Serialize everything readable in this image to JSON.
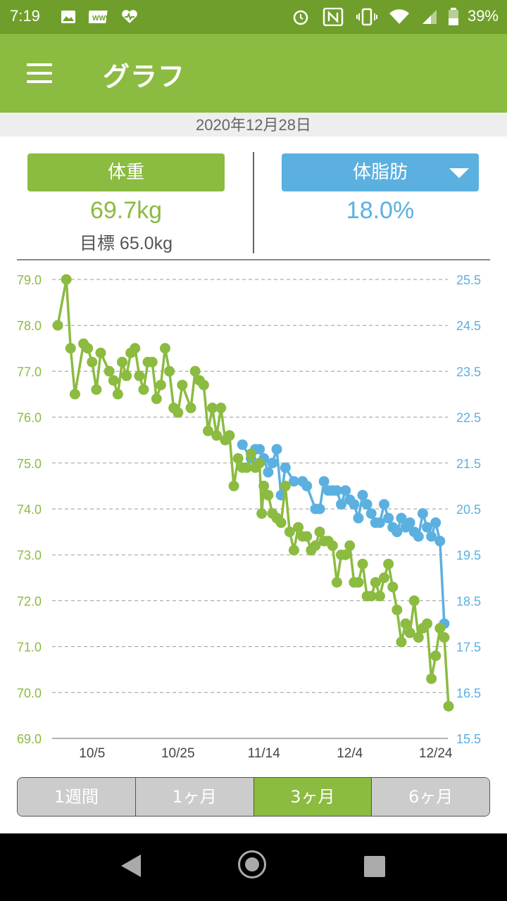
{
  "status_bar": {
    "time": "7:19",
    "battery": "39%",
    "icons": [
      "image-icon",
      "app-badge-icon",
      "health-heart-icon",
      "alarm-icon",
      "nfc-icon",
      "vibrate-icon",
      "wifi-icon",
      "signal-icon",
      "battery-icon"
    ],
    "app_badge_text": "WWW"
  },
  "app_bar": {
    "title": "グラフ",
    "menu_icon": "menu-icon"
  },
  "date": "2020年12月28日",
  "weight": {
    "label": "体重",
    "value": "69.7kg",
    "goal": "目標 65.0kg",
    "color": "#8bbb40"
  },
  "body_fat": {
    "label": "体脂肪",
    "value": "18.0%",
    "color": "#5bb0e0"
  },
  "tabs": [
    {
      "label": "1週間",
      "active": false
    },
    {
      "label": "1ヶ月",
      "active": false
    },
    {
      "label": "3ヶ月",
      "active": true
    },
    {
      "label": "6ヶ月",
      "active": false
    }
  ],
  "chart_data": {
    "type": "line",
    "x_tick_labels": [
      "10/5",
      "10/25",
      "11/14",
      "12/4",
      "12/24"
    ],
    "x_tick_days": [
      5,
      25,
      45,
      65,
      85
    ],
    "x_range_days": [
      -3,
      88
    ],
    "grid": true,
    "series": [
      {
        "name": "体重",
        "axis": "left",
        "color": "#8bbb40",
        "ylim": [
          69.0,
          79.0
        ],
        "ticks": [
          "79.0",
          "78.0",
          "77.0",
          "76.0",
          "75.0",
          "74.0",
          "73.0",
          "72.0",
          "71.0",
          "70.0",
          "69.0"
        ],
        "points": [
          [
            -3,
            78.0
          ],
          [
            -1,
            79.0
          ],
          [
            0,
            77.5
          ],
          [
            1,
            76.5
          ],
          [
            3,
            77.6
          ],
          [
            4,
            77.5
          ],
          [
            5,
            77.2
          ],
          [
            6,
            76.6
          ],
          [
            7,
            77.4
          ],
          [
            9,
            77.0
          ],
          [
            10,
            76.8
          ],
          [
            11,
            76.5
          ],
          [
            12,
            77.2
          ],
          [
            13,
            76.9
          ],
          [
            14,
            77.4
          ],
          [
            15,
            77.5
          ],
          [
            16,
            76.9
          ],
          [
            17,
            76.6
          ],
          [
            18,
            77.2
          ],
          [
            19,
            77.2
          ],
          [
            20,
            76.4
          ],
          [
            21,
            76.7
          ],
          [
            22,
            77.5
          ],
          [
            23,
            77.0
          ],
          [
            24,
            76.2
          ],
          [
            25,
            76.1
          ],
          [
            26,
            76.7
          ],
          [
            28,
            76.2
          ],
          [
            29,
            77.0
          ],
          [
            30,
            76.8
          ],
          [
            31,
            76.7
          ],
          [
            32,
            75.7
          ],
          [
            33,
            76.2
          ],
          [
            34,
            75.6
          ],
          [
            35,
            76.2
          ],
          [
            36,
            75.5
          ],
          [
            37,
            75.6
          ],
          [
            38,
            74.5
          ],
          [
            39,
            75.1
          ],
          [
            40,
            74.9
          ],
          [
            41,
            74.9
          ],
          [
            42,
            75.2
          ],
          [
            43,
            74.9
          ],
          [
            44,
            75.0
          ],
          [
            44.5,
            73.9
          ],
          [
            45,
            74.5
          ],
          [
            46,
            74.3
          ],
          [
            47,
            73.9
          ],
          [
            48,
            73.8
          ],
          [
            49,
            73.7
          ],
          [
            50,
            74.5
          ],
          [
            51,
            73.5
          ],
          [
            52,
            73.1
          ],
          [
            53,
            73.6
          ],
          [
            54,
            73.4
          ],
          [
            55,
            73.4
          ],
          [
            56,
            73.1
          ],
          [
            57,
            73.2
          ],
          [
            58,
            73.5
          ],
          [
            59,
            73.3
          ],
          [
            60,
            73.3
          ],
          [
            61,
            73.2
          ],
          [
            62,
            72.4
          ],
          [
            63,
            73.0
          ],
          [
            64,
            73.0
          ],
          [
            65,
            73.2
          ],
          [
            66,
            72.4
          ],
          [
            67,
            72.4
          ],
          [
            68,
            72.8
          ],
          [
            69,
            72.1
          ],
          [
            70,
            72.1
          ],
          [
            71,
            72.4
          ],
          [
            72,
            72.1
          ],
          [
            73,
            72.5
          ],
          [
            74,
            72.8
          ],
          [
            75,
            72.3
          ],
          [
            76,
            71.8
          ],
          [
            77,
            71.1
          ],
          [
            78,
            71.5
          ],
          [
            79,
            71.3
          ],
          [
            80,
            72.0
          ],
          [
            81,
            71.2
          ],
          [
            82,
            71.4
          ],
          [
            83,
            71.5
          ],
          [
            84,
            70.3
          ],
          [
            85,
            70.8
          ],
          [
            86,
            71.4
          ],
          [
            87,
            71.2
          ],
          [
            88,
            69.7
          ]
        ]
      },
      {
        "name": "体脂肪",
        "axis": "right",
        "color": "#5bb0e0",
        "ylim": [
          15.5,
          25.5
        ],
        "ticks": [
          "25.5",
          "24.5",
          "23.5",
          "22.5",
          "21.5",
          "20.5",
          "19.5",
          "18.5",
          "17.5",
          "16.5",
          "15.5"
        ],
        "points": [
          [
            40,
            21.9
          ],
          [
            42,
            21.6
          ],
          [
            43,
            21.8
          ],
          [
            44,
            21.8
          ],
          [
            45,
            21.6
          ],
          [
            46,
            21.3
          ],
          [
            47,
            21.5
          ],
          [
            48,
            21.8
          ],
          [
            49,
            20.8
          ],
          [
            50,
            21.4
          ],
          [
            52,
            21.1
          ],
          [
            54,
            21.1
          ],
          [
            55,
            21.0
          ],
          [
            57,
            20.5
          ],
          [
            58,
            20.5
          ],
          [
            59,
            21.1
          ],
          [
            60,
            20.9
          ],
          [
            61,
            20.9
          ],
          [
            62,
            20.9
          ],
          [
            63,
            20.6
          ],
          [
            64,
            20.9
          ],
          [
            65,
            20.7
          ],
          [
            66,
            20.6
          ],
          [
            67,
            20.3
          ],
          [
            68,
            20.8
          ],
          [
            69,
            20.6
          ],
          [
            70,
            20.4
          ],
          [
            71,
            20.2
          ],
          [
            72,
            20.2
          ],
          [
            73,
            20.6
          ],
          [
            74,
            20.3
          ],
          [
            75,
            20.1
          ],
          [
            76,
            20.0
          ],
          [
            77,
            20.3
          ],
          [
            78,
            20.1
          ],
          [
            79,
            20.2
          ],
          [
            80,
            20.0
          ],
          [
            81,
            19.9
          ],
          [
            82,
            20.4
          ],
          [
            83,
            20.1
          ],
          [
            84,
            19.9
          ],
          [
            85,
            20.2
          ],
          [
            86,
            19.8
          ],
          [
            87,
            18.0
          ]
        ]
      }
    ]
  }
}
